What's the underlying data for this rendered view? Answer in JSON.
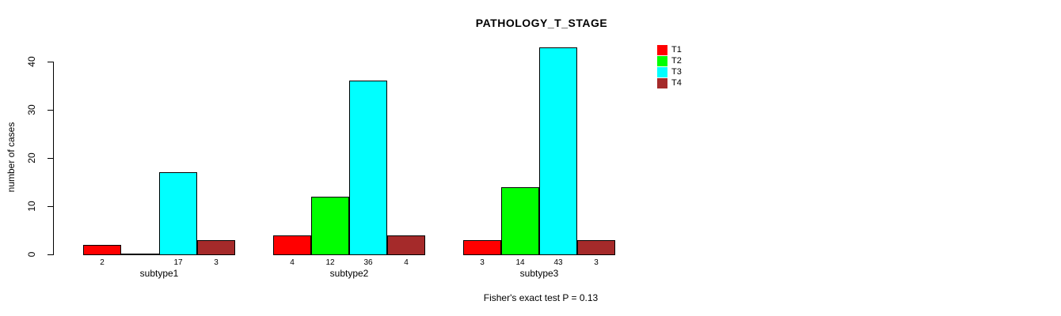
{
  "chart_data": {
    "type": "bar",
    "title": "PATHOLOGY_T_STAGE",
    "ylabel": "number of cases",
    "xlabel": "",
    "categories": [
      "subtype1",
      "subtype2",
      "subtype3"
    ],
    "series": [
      {
        "name": "T1",
        "color": "#ff0000",
        "values": [
          2,
          4,
          3
        ]
      },
      {
        "name": "T2",
        "color": "#00ff00",
        "values": [
          0,
          12,
          14
        ]
      },
      {
        "name": "T3",
        "color": "#00ffff",
        "values": [
          17,
          36,
          43
        ]
      },
      {
        "name": "T4",
        "color": "#a52a2a",
        "values": [
          3,
          4,
          3
        ]
      }
    ],
    "yticks": [
      0,
      10,
      20,
      30,
      40
    ],
    "ylim": [
      0,
      43
    ],
    "grid": false,
    "bar_labels_shown": true,
    "bar_labels_hide_zero": true,
    "legend": {
      "position": "right",
      "entries": [
        "T1",
        "T2",
        "T3",
        "T4"
      ]
    },
    "annotation": "Fisher's exact test P = 0.13"
  }
}
